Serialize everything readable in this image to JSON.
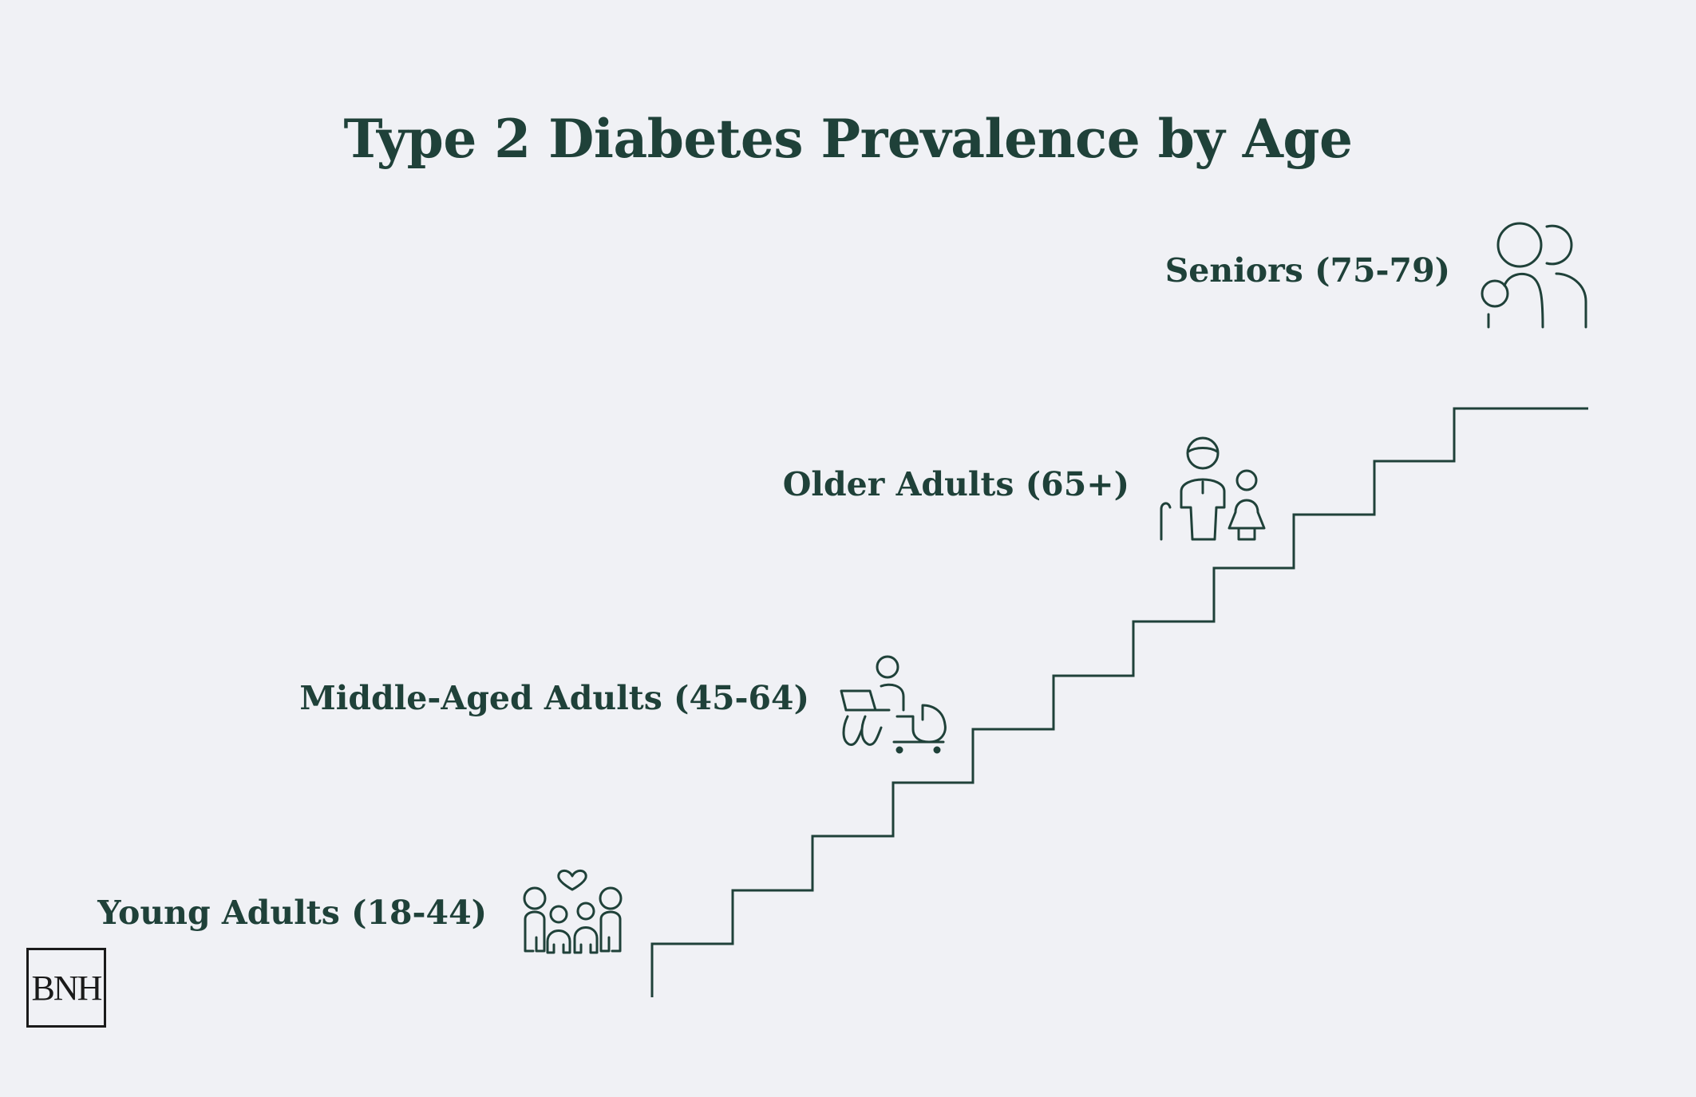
{
  "title": "Type 2 Diabetes Prevalence by Age",
  "stages": [
    {
      "label": "Young Adults (18-44)",
      "icon": "family-icon"
    },
    {
      "label": "Middle-Aged Adults (45-64)",
      "icon": "working-parent-stroller-icon"
    },
    {
      "label": "Older Adults (65+)",
      "icon": "elderly-couple-icon"
    },
    {
      "label": "Seniors (75-79)",
      "icon": "senior-people-icon"
    }
  ],
  "logo": {
    "text": "BNH"
  },
  "colors": {
    "primary": "#1f4139",
    "background": "#f0f1f5",
    "logo": "#1a1a1a"
  }
}
